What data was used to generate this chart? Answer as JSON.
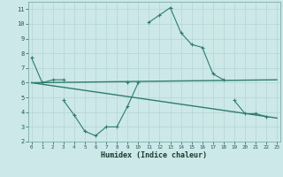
{
  "xlabel": "Humidex (Indice chaleur)",
  "x": [
    0,
    1,
    2,
    3,
    4,
    5,
    6,
    7,
    8,
    9,
    10,
    11,
    12,
    13,
    14,
    15,
    16,
    17,
    18,
    19,
    20,
    21,
    22,
    23
  ],
  "line1": [
    7.7,
    6.0,
    6.2,
    6.2,
    null,
    null,
    null,
    null,
    null,
    6.0,
    null,
    10.1,
    10.6,
    11.1,
    9.4,
    8.6,
    8.4,
    6.6,
    6.2,
    null,
    null,
    null,
    null,
    null
  ],
  "line2": [
    null,
    null,
    null,
    4.8,
    3.8,
    2.7,
    2.4,
    3.0,
    3.0,
    4.4,
    6.0,
    null,
    null,
    null,
    null,
    null,
    null,
    null,
    null,
    4.8,
    3.9,
    3.9,
    3.7,
    null
  ],
  "line3_x": [
    0,
    23
  ],
  "line3_y": [
    6.0,
    6.2
  ],
  "line4_x": [
    0,
    23
  ],
  "line4_y": [
    6.0,
    3.6
  ],
  "color": "#2d7d6e",
  "bg_color": "#cde8e8",
  "grid_color": "#b8d8d8",
  "ylim": [
    2,
    11.5
  ],
  "xlim": [
    -0.3,
    23.3
  ],
  "yticks": [
    2,
    3,
    4,
    5,
    6,
    7,
    8,
    9,
    10,
    11
  ],
  "xticks": [
    0,
    1,
    2,
    3,
    4,
    5,
    6,
    7,
    8,
    9,
    10,
    11,
    12,
    13,
    14,
    15,
    16,
    17,
    18,
    19,
    20,
    21,
    22,
    23
  ]
}
